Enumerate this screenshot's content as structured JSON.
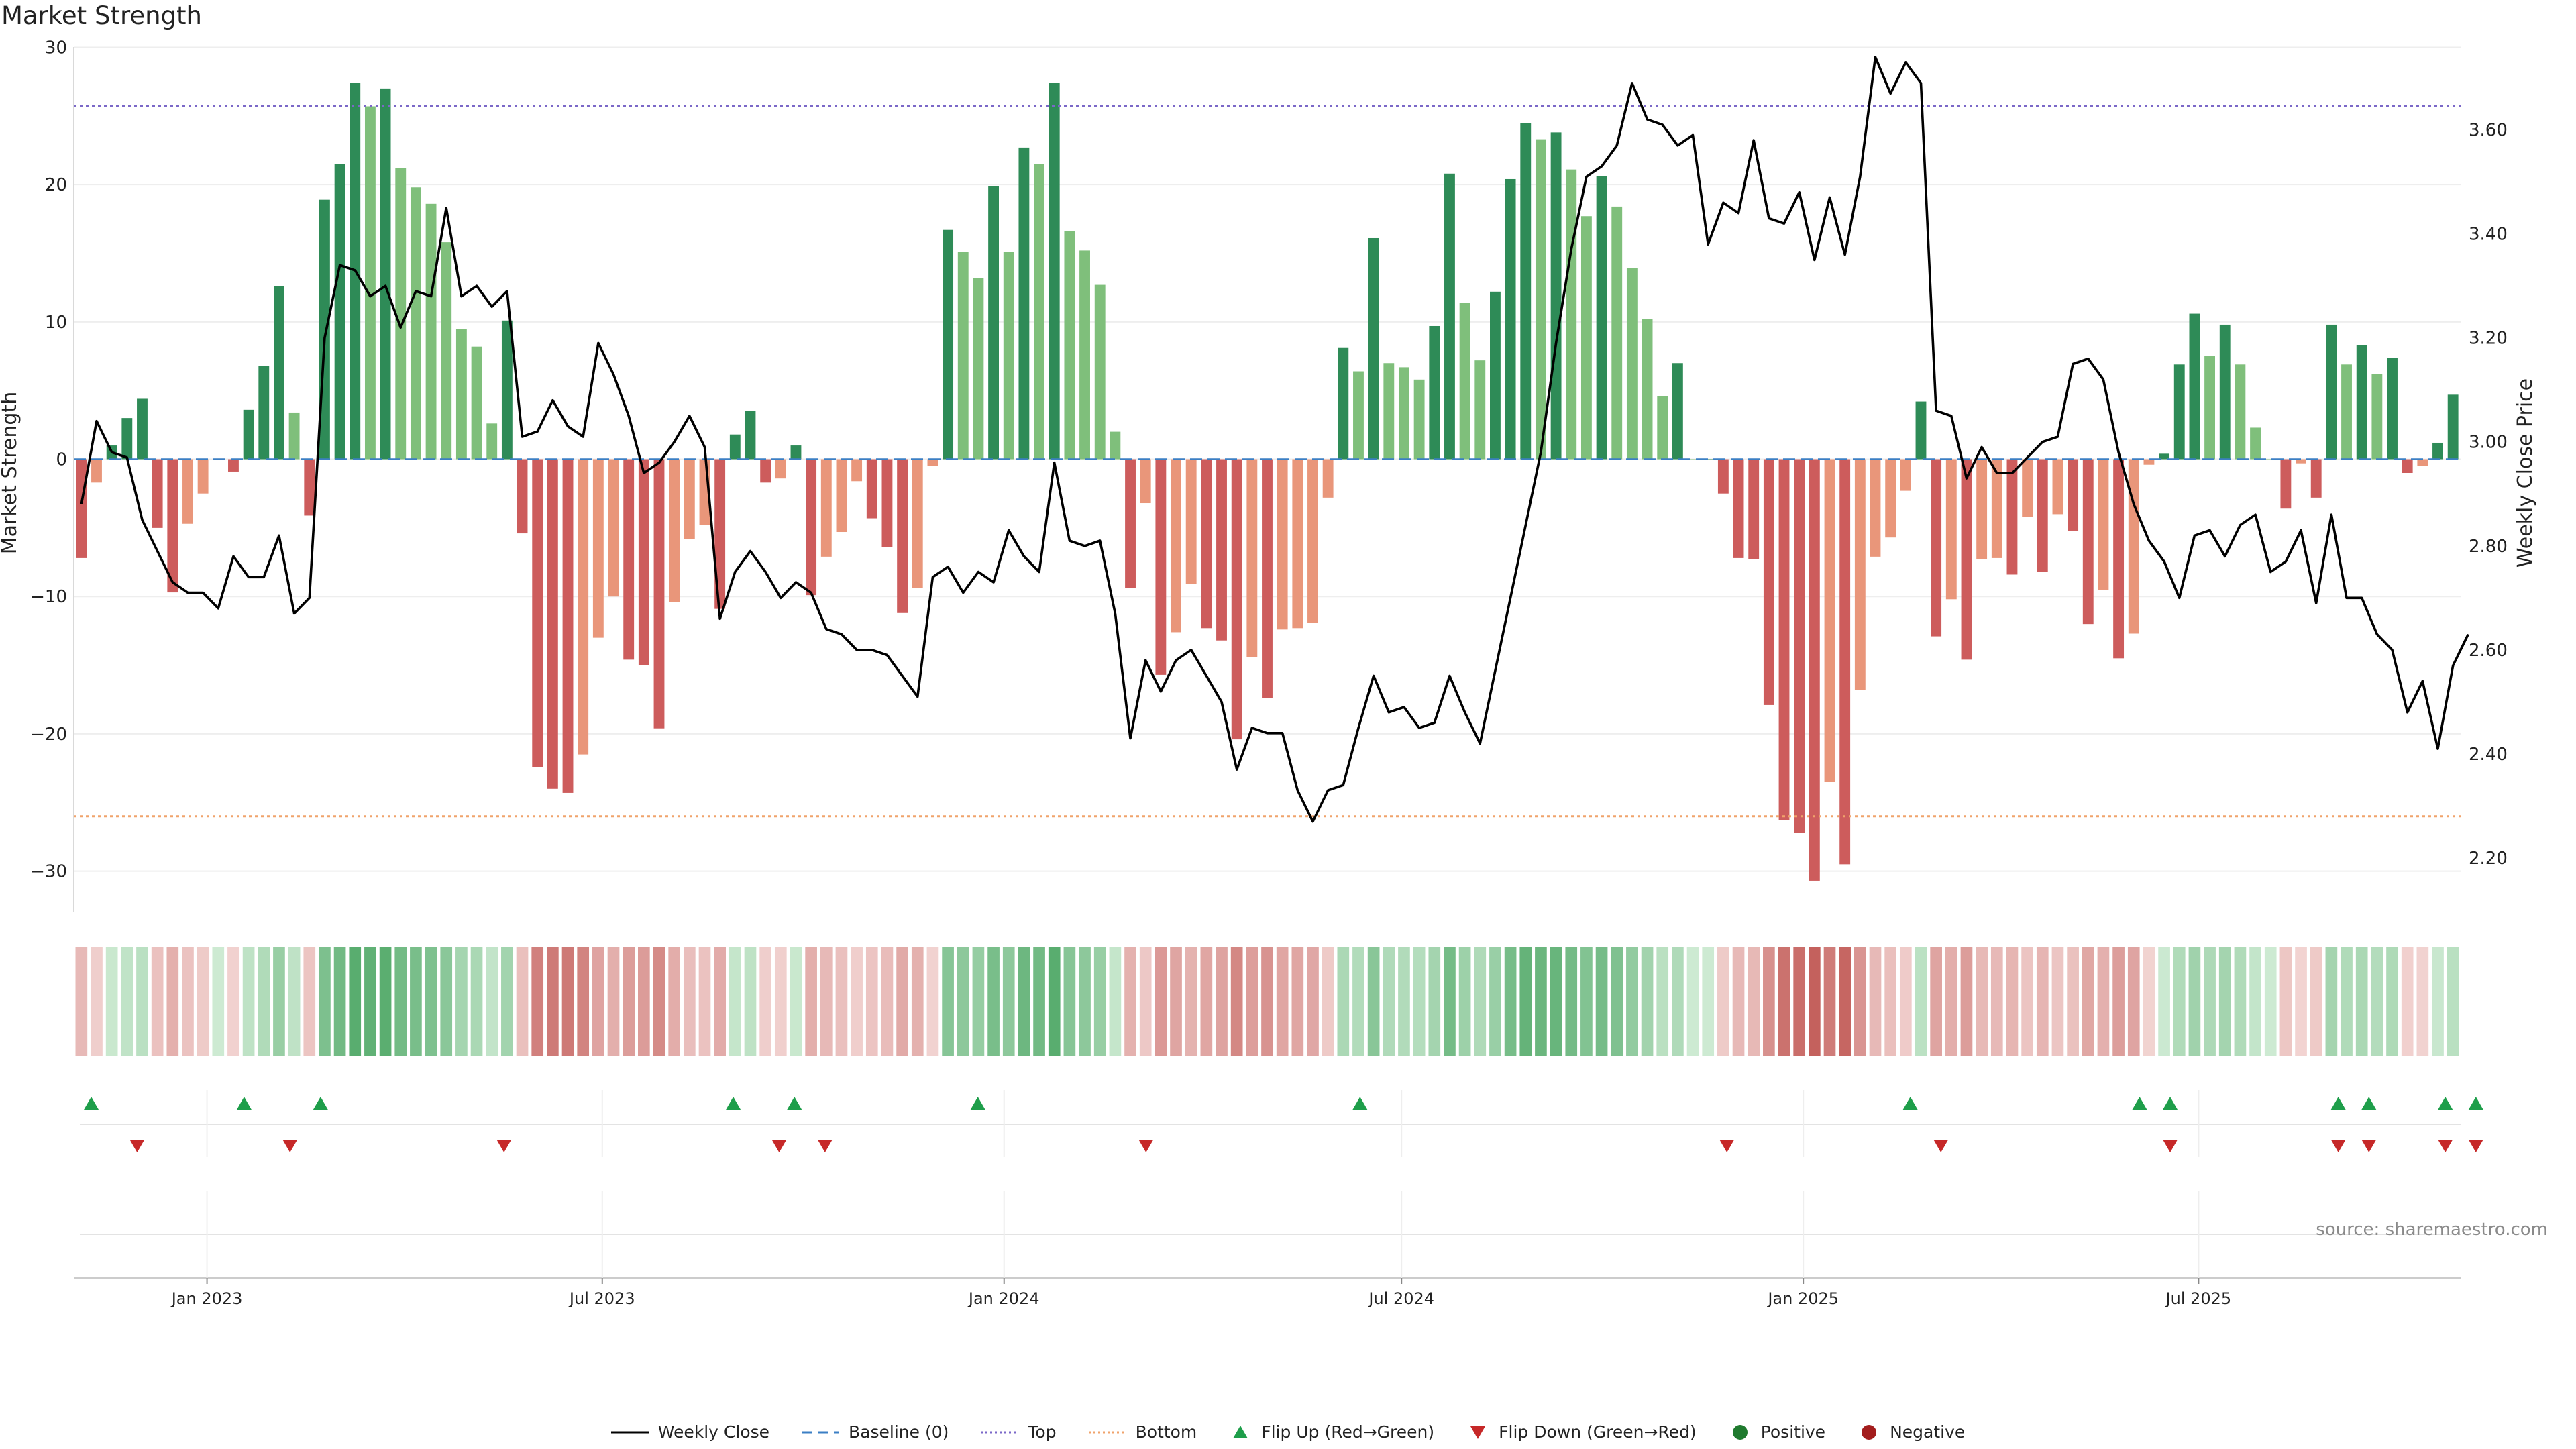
{
  "title": "Market Strength",
  "source": "source: sharemaestro.com",
  "colors": {
    "strong_green": "#2e8b57",
    "light_green": "#7fbf7b",
    "strong_red": "#cd5c5c",
    "light_red": "#e9967a",
    "top_line": "#7b68c8",
    "bottom_line": "#f0a36b",
    "baseline": "#3b7fc4",
    "price": "#000000",
    "flip_up": "#1e9e4a",
    "flip_down": "#c62828"
  },
  "legend": [
    {
      "key": "weekly_close",
      "label": "Weekly Close",
      "icon": "line-icon"
    },
    {
      "key": "baseline",
      "label": "Baseline (0)",
      "icon": "dashed-line-icon"
    },
    {
      "key": "top",
      "label": "Top",
      "icon": "dotted-line-icon"
    },
    {
      "key": "bottom",
      "label": "Bottom",
      "icon": "dotted-line-icon"
    },
    {
      "key": "flip_up",
      "label": "Flip Up (Red→Green)",
      "icon": "triangle-up-icon"
    },
    {
      "key": "flip_down",
      "label": "Flip Down (Green→Red)",
      "icon": "triangle-down-icon"
    },
    {
      "key": "positive",
      "label": "Positive",
      "icon": "circle-icon"
    },
    {
      "key": "negative",
      "label": "Negative",
      "icon": "circle-icon"
    }
  ],
  "chart_data": {
    "type": "bar",
    "x_start": "2022-11-01",
    "x_end": "2025-10-29",
    "x_ticks": [
      {
        "label": "Jan 2023",
        "date": "2023-01-01"
      },
      {
        "label": "Jul 2023",
        "date": "2023-07-01"
      },
      {
        "label": "Jan 2024",
        "date": "2024-01-01"
      },
      {
        "label": "Jul 2024",
        "date": "2024-07-01"
      },
      {
        "label": "Jan 2025",
        "date": "2025-01-01"
      },
      {
        "label": "Jul 2025",
        "date": "2025-07-01"
      }
    ],
    "ylabel": "Market Strength",
    "y2label": "Weekly Close Price",
    "ylim": [
      -33,
      31
    ],
    "yticks": [
      -30,
      -20,
      -10,
      0,
      10,
      20,
      30
    ],
    "y2lim": [
      2.0953,
      3.7853
    ],
    "y2ticks": [
      2.2,
      2.4,
      2.6,
      2.8,
      3.0,
      3.2,
      3.4,
      3.6
    ],
    "y2tick_labels": [
      "2.20",
      "2.40",
      "2.60",
      "2.80",
      "3.00",
      "3.20",
      "3.40",
      "3.60"
    ],
    "top": 25.7,
    "bottom": -26.0,
    "strength": [
      -7.2,
      -1.7,
      1,
      3,
      4.4,
      -5,
      -9.7,
      -4.7,
      -2.5,
      0,
      -0.9,
      3.6,
      6.8,
      12.6,
      3.4,
      -4.1,
      18.9,
      21.5,
      27.4,
      25.7,
      27,
      21.2,
      19.8,
      18.6,
      15.8,
      9.5,
      8.2,
      2.6,
      10.1,
      -5.4,
      -22.4,
      -24.0,
      -24.3,
      -21.5,
      -13,
      -10,
      -14.6,
      -15,
      -19.6,
      -10.4,
      -5.8,
      -4.8,
      -10.9,
      1.8,
      3.5,
      -1.7,
      -1.4,
      1,
      -9.9,
      -7.1,
      -5.3,
      -1.6,
      -4.3,
      -6.4,
      -11.2,
      -9.4,
      -0.5,
      16.7,
      15.1,
      13.2,
      19.9,
      15.1,
      22.7,
      21.5,
      27.4,
      16.6,
      15.2,
      12.7,
      2,
      -9.4,
      -3.2,
      -15.7,
      -12.6,
      -9.1,
      -12.3,
      -13.2,
      -20.4,
      -14.4,
      -17.4,
      -12.4,
      -12.3,
      -11.9,
      -2.8,
      8.1,
      6.4,
      16.1,
      7,
      6.7,
      5.8,
      9.7,
      20.8,
      11.4,
      7.2,
      12.2,
      20.4,
      24.5,
      23.3,
      23.8,
      21.1,
      17.7,
      20.6,
      18.4,
      13.9,
      10.2,
      4.6,
      7,
      0,
      0,
      -2.5,
      -7.2,
      -7.3,
      -17.9,
      -26.3,
      -27.2,
      -30.7,
      -23.5,
      -29.5,
      -16.8,
      -7.1,
      -5.7,
      -2.3,
      4.2,
      -12.9,
      -10.2,
      -14.6,
      -7.3,
      -7.2,
      -8.4,
      -4.2,
      -8.2,
      -4,
      -5.2,
      -12,
      -9.5,
      -14.5,
      -12.7,
      -0.4,
      0.4,
      6.9,
      10.6,
      7.5,
      9.8,
      6.9,
      2.3,
      0,
      -3.6,
      -0.3,
      -2.8,
      9.8,
      6.9,
      8.3,
      6.2,
      7.4,
      -1,
      -0.5,
      1.2,
      4.7
    ],
    "price": [
      2.88,
      3.04,
      2.98,
      2.97,
      2.85,
      2.79,
      2.73,
      2.71,
      2.71,
      2.68,
      2.78,
      2.74,
      2.74,
      2.82,
      2.67,
      2.7,
      3.2,
      3.34,
      3.33,
      3.28,
      3.3,
      3.22,
      3.29,
      3.28,
      3.45,
      3.28,
      3.3,
      3.26,
      3.29,
      3.01,
      3.02,
      3.08,
      3.03,
      3.01,
      3.19,
      3.13,
      3.05,
      2.94,
      2.96,
      3.0,
      3.05,
      2.99,
      2.66,
      2.75,
      2.79,
      2.75,
      2.7,
      2.73,
      2.71,
      2.64,
      2.63,
      2.6,
      2.6,
      2.59,
      2.55,
      2.51,
      2.74,
      2.76,
      2.71,
      2.75,
      2.73,
      2.83,
      2.78,
      2.75,
      2.96,
      2.81,
      2.8,
      2.81,
      2.67,
      2.43,
      2.58,
      2.52,
      2.58,
      2.6,
      2.55,
      2.5,
      2.37,
      2.45,
      2.44,
      2.44,
      2.33,
      2.27,
      2.33,
      2.34,
      2.45,
      2.55,
      2.48,
      2.49,
      2.45,
      2.46,
      2.55,
      2.48,
      2.42,
      2.56,
      2.7,
      2.84,
      2.98,
      3.19,
      3.37,
      3.51,
      3.53,
      3.57,
      3.69,
      3.62,
      3.61,
      3.57,
      3.59,
      3.38,
      3.46,
      3.44,
      3.58,
      3.43,
      3.42,
      3.48,
      3.35,
      3.47,
      3.36,
      3.51,
      3.74,
      3.67,
      3.73,
      3.69,
      3.06,
      3.05,
      2.93,
      2.99,
      2.94,
      2.94,
      2.97,
      3.0,
      3.01,
      3.15,
      3.16,
      3.12,
      2.98,
      2.88,
      2.81,
      2.77,
      2.7,
      2.82,
      2.83,
      2.78,
      2.84,
      2.86,
      2.75,
      2.77,
      2.83,
      2.69,
      2.86,
      2.7,
      2.7,
      2.63,
      2.6,
      2.48,
      2.54,
      2.41,
      2.57,
      2.63
    ],
    "flip_up_dates": [
      "2022-11-09",
      "2023-01-18",
      "2023-02-22",
      "2023-08-30",
      "2023-09-27",
      "2023-12-20",
      "2024-06-12",
      "2025-02-19",
      "2025-06-04",
      "2025-06-18",
      "2025-09-03",
      "2025-09-17",
      "2025-10-22",
      "2025-11-05"
    ],
    "flip_down_dates": [
      "2022-11-30",
      "2023-02-08",
      "2023-05-17",
      "2023-09-20",
      "2023-10-11",
      "2024-03-06",
      "2024-11-27",
      "2025-03-05",
      "2025-06-18",
      "2025-09-03",
      "2025-09-17",
      "2025-10-22",
      "2025-11-05"
    ]
  }
}
